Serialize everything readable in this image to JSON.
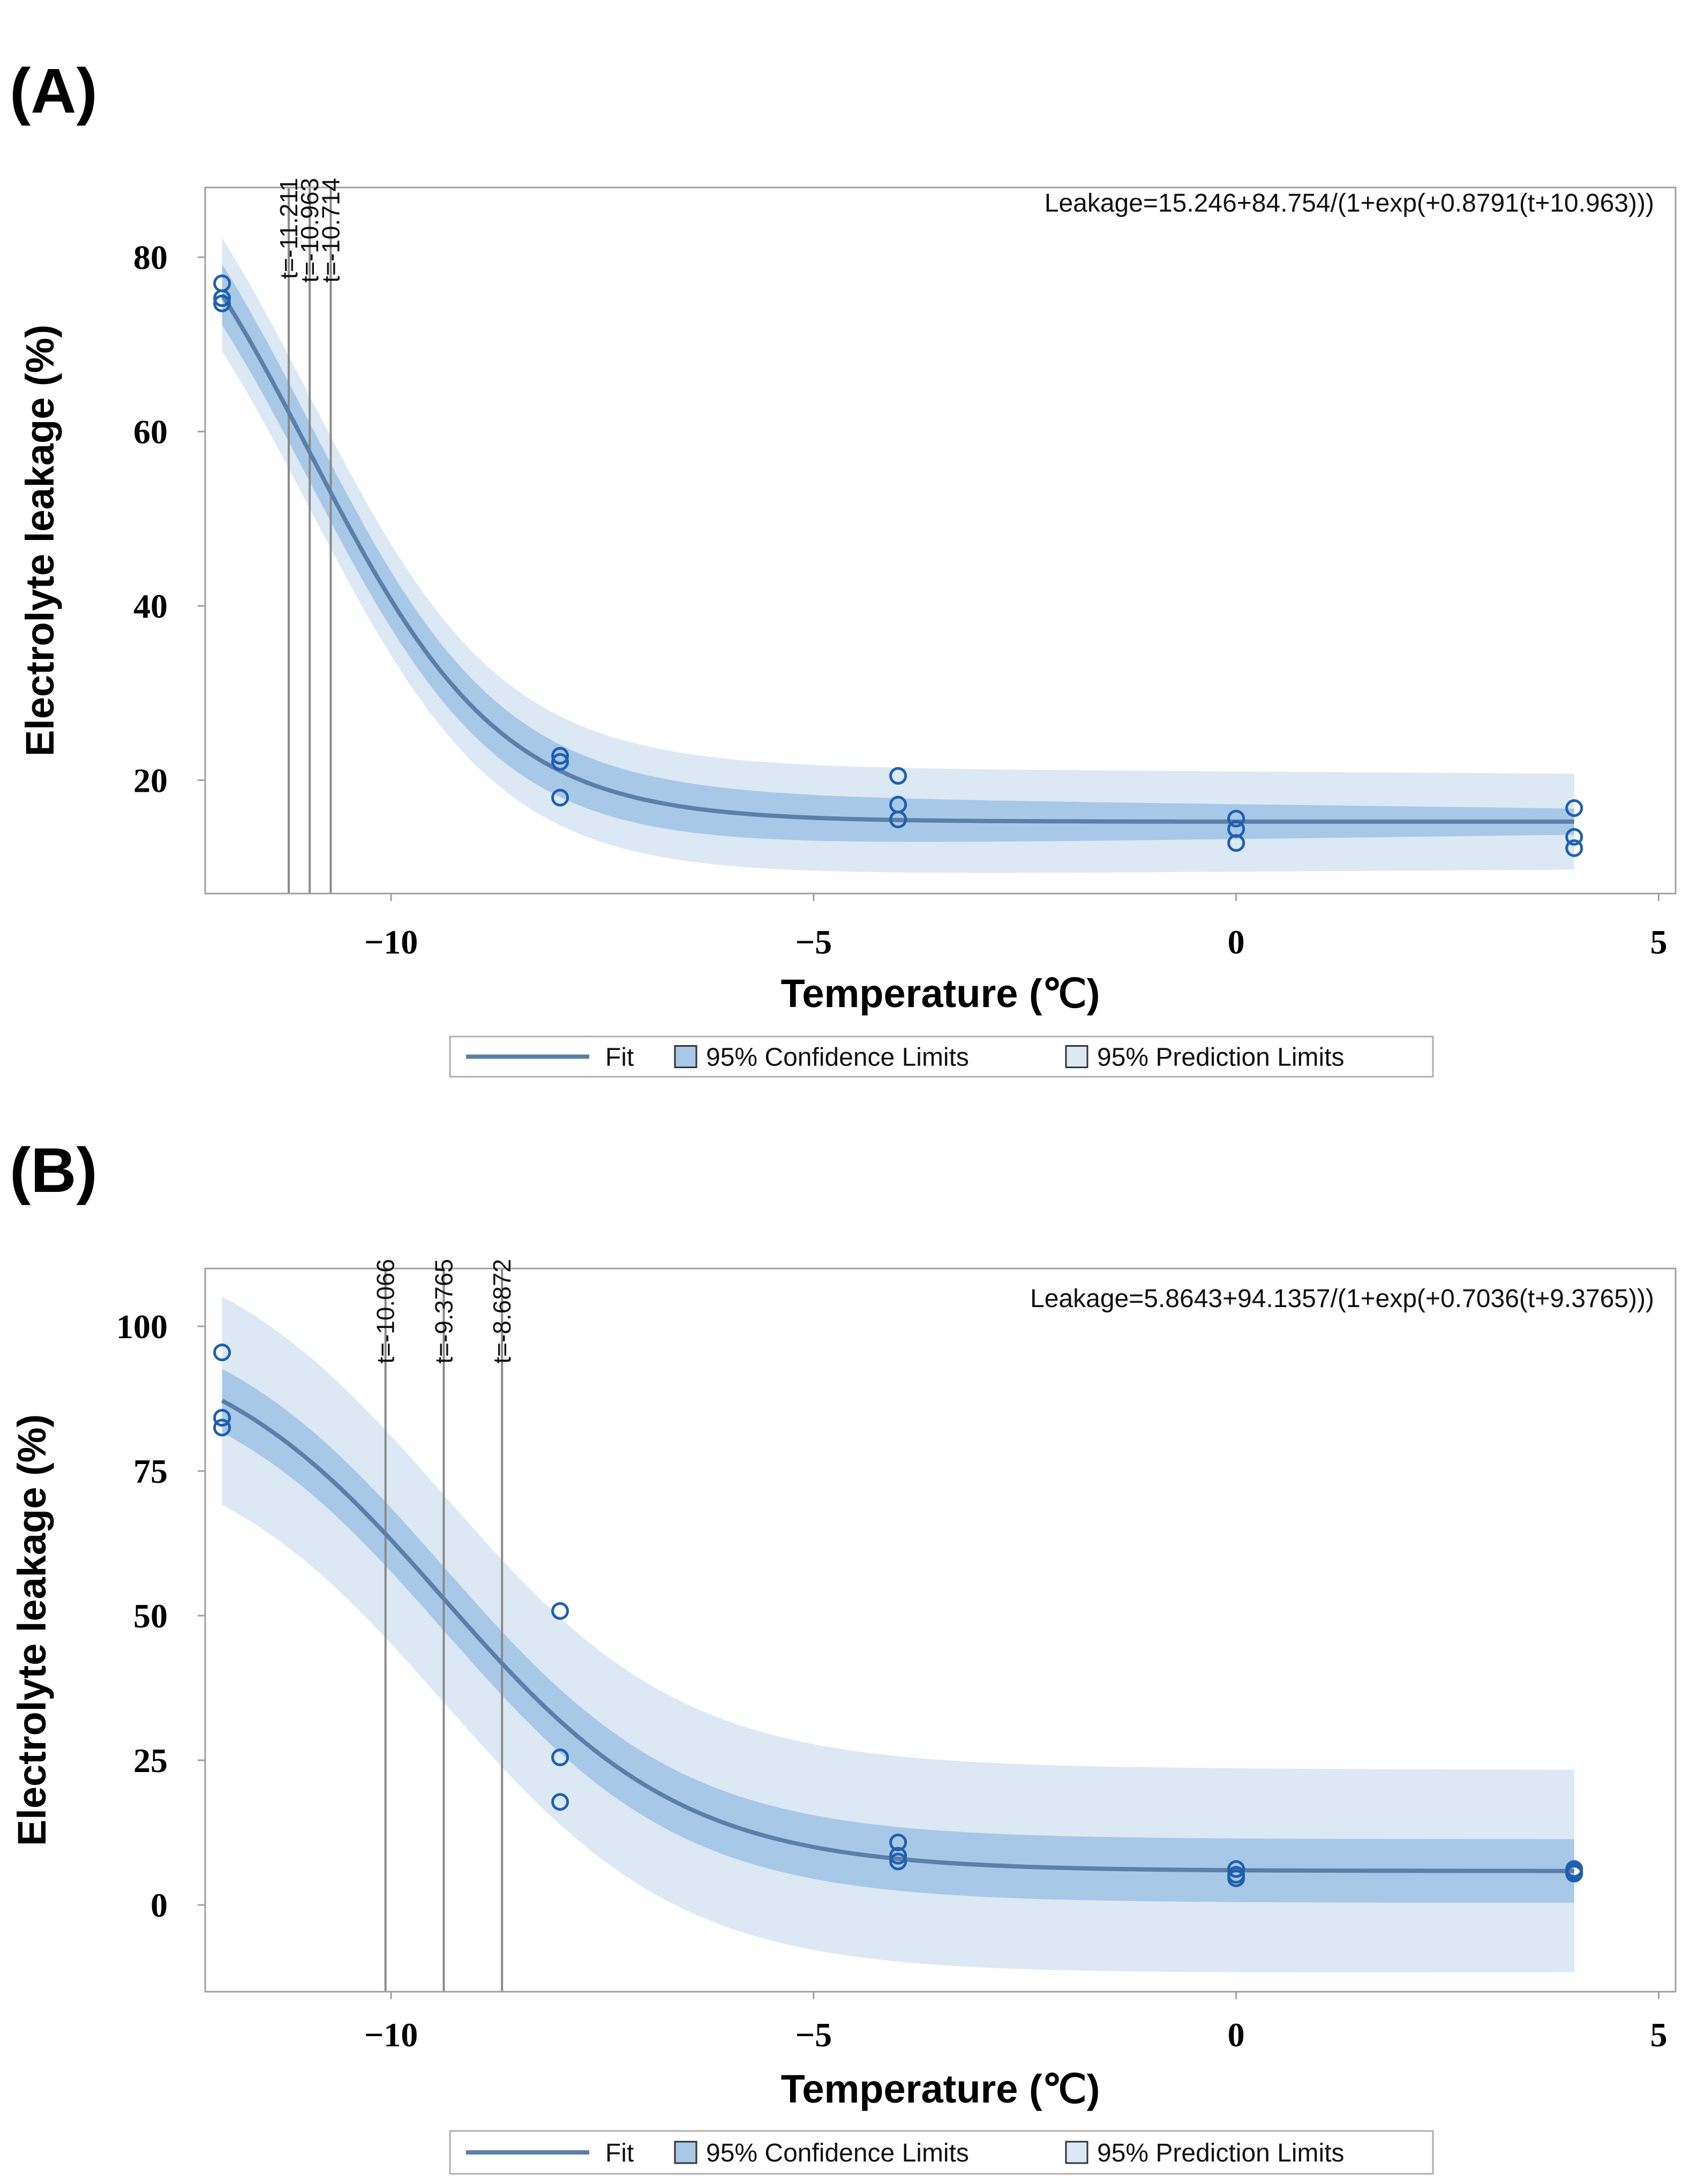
{
  "chart_data": [
    {
      "type": "line",
      "panel_label": "(A)",
      "xlabel": "Temperature (℃)",
      "ylabel": "Electrolyte leakage (%)",
      "xlim": [
        -12.2,
        5.2
      ],
      "ylim": [
        7,
        88
      ],
      "xticks": [
        -10,
        -5,
        0,
        5
      ],
      "yticks": [
        20,
        40,
        60,
        80
      ],
      "equation": "Leakage=15.246+84.754/(1+exp(+0.8791(t+10.963)))",
      "model": {
        "a": 15.246,
        "b": 84.754,
        "k": 0.8791,
        "t0": 10.963
      },
      "fit_range": [
        -12,
        4
      ],
      "confidence_band_halfwidth": [
        3.5,
        1.5
      ],
      "prediction_band_halfwidth": [
        6.5,
        5.5
      ],
      "reference_lines": [
        {
          "x": -11.211,
          "label": "t=-11.211"
        },
        {
          "x": -10.963,
          "label": "t=-10.963"
        },
        {
          "x": -10.714,
          "label": "t=-10.714"
        }
      ],
      "points": [
        {
          "x": -12,
          "y": 77
        },
        {
          "x": -12,
          "y": 75.3
        },
        {
          "x": -12,
          "y": 74.7
        },
        {
          "x": -8,
          "y": 22.8
        },
        {
          "x": -8,
          "y": 22.1
        },
        {
          "x": -8,
          "y": 18
        },
        {
          "x": -4,
          "y": 20.5
        },
        {
          "x": -4,
          "y": 17.2
        },
        {
          "x": -4,
          "y": 15.5
        },
        {
          "x": 0,
          "y": 15.6
        },
        {
          "x": 0,
          "y": 14.4
        },
        {
          "x": 0,
          "y": 12.8
        },
        {
          "x": 4,
          "y": 16.8
        },
        {
          "x": 4,
          "y": 13.5
        },
        {
          "x": 4,
          "y": 12.2
        }
      ],
      "legend": [
        {
          "key": "fit",
          "label": "Fit"
        },
        {
          "key": "clm",
          "label": "95% Confidence Limits"
        },
        {
          "key": "pred",
          "label": "95% Prediction Limits"
        }
      ],
      "colors": {
        "fit": "#5b7fa8",
        "clm": "#a8c8e8",
        "pred": "#dce8f4",
        "point": "#1f5fb0",
        "ref": "#8a8a8a",
        "frame": "#a0a0a0"
      }
    },
    {
      "type": "line",
      "panel_label": "(B)",
      "xlabel": "Temperature (℃)",
      "ylabel": "Electrolyte leakage (%)",
      "xlim": [
        -12.2,
        5.2
      ],
      "ylim": [
        -15,
        110
      ],
      "xticks": [
        -10,
        -5,
        0,
        5
      ],
      "yticks": [
        0,
        25,
        50,
        75,
        100
      ],
      "equation": "Leakage=5.8643+94.1357/(1+exp(+0.7036(t+9.3765)))",
      "model": {
        "a": 5.8643,
        "b": 94.1357,
        "k": 0.7036,
        "t0": 9.3765
      },
      "fit_range": [
        -12,
        4
      ],
      "confidence_band_halfwidth": [
        5.5,
        5.5
      ],
      "prediction_band_halfwidth": [
        18,
        17.5
      ],
      "reference_lines": [
        {
          "x": -10.066,
          "label": "t=-10.066"
        },
        {
          "x": -9.3765,
          "label": "t=-9.3765"
        },
        {
          "x": -8.6872,
          "label": "t=-8.6872"
        }
      ],
      "points": [
        {
          "x": -12,
          "y": 95.5
        },
        {
          "x": -12,
          "y": 84.2
        },
        {
          "x": -12,
          "y": 82.5
        },
        {
          "x": -8,
          "y": 50.8
        },
        {
          "x": -8,
          "y": 25.5
        },
        {
          "x": -8,
          "y": 17.8
        },
        {
          "x": -4,
          "y": 10.8
        },
        {
          "x": -4,
          "y": 8.5
        },
        {
          "x": -4,
          "y": 7.5
        },
        {
          "x": 0,
          "y": 6.2
        },
        {
          "x": 0,
          "y": 5.2
        },
        {
          "x": 0,
          "y": 4.6
        },
        {
          "x": 4,
          "y": 6.2
        },
        {
          "x": 4,
          "y": 5.8
        },
        {
          "x": 4,
          "y": 5.4
        }
      ],
      "legend": [
        {
          "key": "fit",
          "label": "Fit"
        },
        {
          "key": "clm",
          "label": "95% Confidence Limits"
        },
        {
          "key": "pred",
          "label": "95% Prediction Limits"
        }
      ],
      "colors": {
        "fit": "#5b7fa8",
        "clm": "#a8c8e8",
        "pred": "#dce8f4",
        "point": "#1f5fb0",
        "ref": "#8a8a8a",
        "frame": "#a0a0a0"
      }
    }
  ]
}
